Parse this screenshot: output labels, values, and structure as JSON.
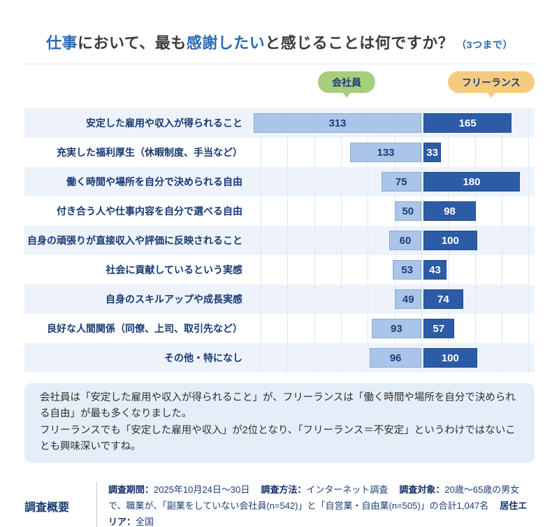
{
  "title": {
    "part1": "仕事",
    "part2": "において、最も",
    "part3": "感謝したい",
    "part4": "と感じることは何ですか？",
    "suffix": "（3つまで）"
  },
  "legend": {
    "employee_label": "会社員",
    "freelance_label": "フリーランス"
  },
  "colors": {
    "employee_bar": "#aac5e8",
    "freelance_bar": "#2d5ca7",
    "employee_pill": "#a7ce7c",
    "freelance_pill": "#f6cb80",
    "accent_blue": "#2a6ab5",
    "navy_text": "#173a74",
    "row_stripe": "#eef3fb",
    "gridline": "#dce7f3",
    "summary_bg": "#e4eef8"
  },
  "chart_data": {
    "type": "bar",
    "orientation": "diverging-horizontal",
    "title": "仕事において、最も感謝したいと感じることは何ですか？（3つまで）",
    "grid": true,
    "grid_step_value": 50,
    "left_axis_max": 300,
    "right_axis_max": 200,
    "categories": [
      "安定した雇用や収入が得られること",
      "充実した福利厚生（休暇制度、手当など）",
      "働く時間や場所を自分で決められる自由",
      "付き合う人や仕事内容を自分で選べる自由",
      "自身の頑張りが直接収入や評価に反映されること",
      "社会に貢献しているという実感",
      "自身のスキルアップや成長実感",
      "良好な人間関係（同僚、上司、取引先など）",
      "その他・特になし"
    ],
    "series": [
      {
        "name": "会社員",
        "side": "left",
        "values": [
          313,
          133,
          75,
          50,
          60,
          53,
          49,
          93,
          96
        ]
      },
      {
        "name": "フリーランス",
        "side": "right",
        "values": [
          165,
          33,
          180,
          98,
          100,
          43,
          74,
          57,
          100
        ]
      }
    ]
  },
  "summary": {
    "lines": [
      "会社員は「安定した雇用や収入が得られること」が、フリーランスは「働く時間や場所を自分で決められる自由」が最も多くなりました。",
      "フリーランスでも「安定した雇用や収入」が2位となり、「フリーランス＝不安定」というわけではないことも興味深いですね。"
    ]
  },
  "survey": {
    "heading": "調査概要",
    "items": [
      {
        "label": "調査期間：",
        "value": "2025年10月24日〜30日"
      },
      {
        "label": "調査方法：",
        "value": "インターネット調査"
      },
      {
        "label": "調査対象：",
        "value": "20歳〜65歳の男女で、職業が、「副業をしていない会社員(n=542)」と「自営業・自由業(n=505)」の合計1,047名"
      },
      {
        "label": "居住エリア：",
        "value": "全国"
      }
    ]
  }
}
